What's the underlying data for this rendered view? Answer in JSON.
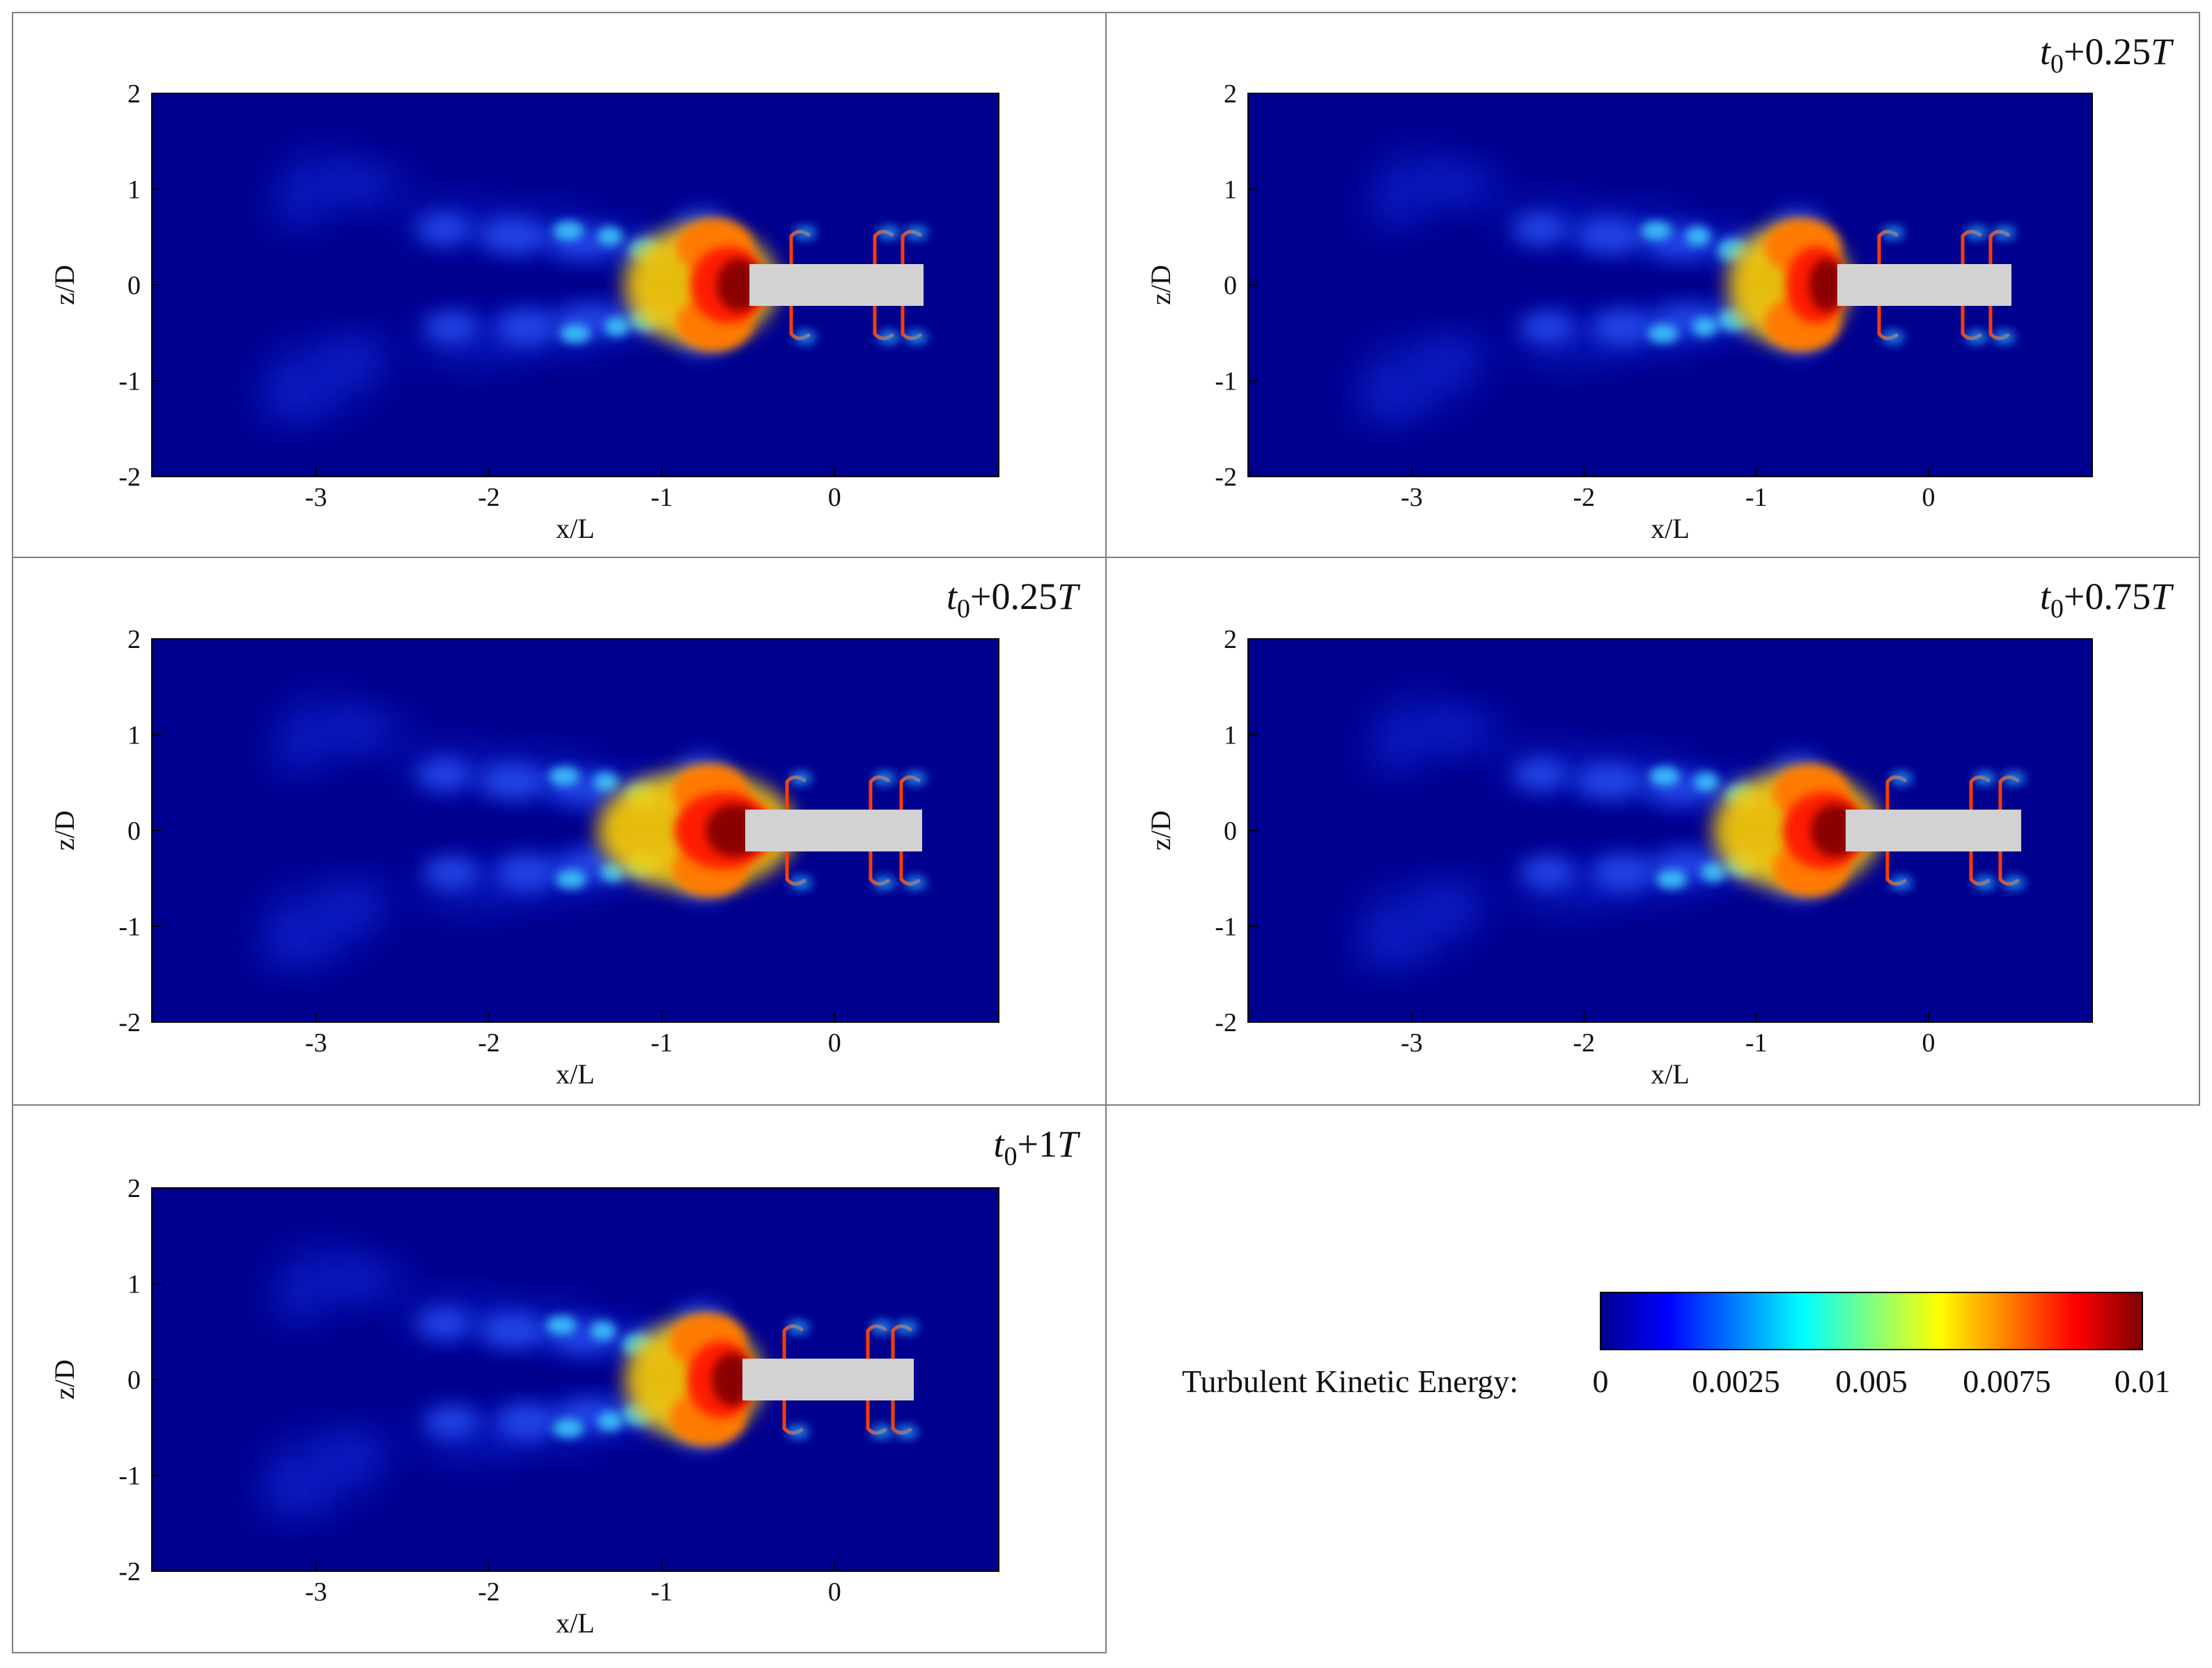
{
  "chart_data": [
    {
      "type": "heatmap",
      "title": "",
      "xlabel": "x/L",
      "ylabel": "z/D",
      "xlim": [
        -3.95,
        0.95
      ],
      "ylim": [
        -2,
        2
      ],
      "xticks": [
        "-3",
        "-2",
        "-1",
        "0"
      ],
      "yticks": [
        "2",
        "1",
        "0",
        "-1",
        "-2"
      ],
      "body_extent_x": [
        -0.5,
        0.5
      ]
    },
    {
      "type": "heatmap",
      "title": {
        "t": "t",
        "sub": "0",
        "plus": "+0.25",
        "T": "T"
      },
      "xlabel": "x/L",
      "ylabel": "z/D",
      "xlim": [
        -3.95,
        0.95
      ],
      "ylim": [
        -2,
        2
      ],
      "xticks": [
        "-3",
        "-2",
        "-1",
        "0"
      ],
      "yticks": [
        "2",
        "1",
        "0",
        "-1",
        "-2"
      ],
      "body_extent_x": [
        -0.5,
        0.5
      ]
    },
    {
      "type": "heatmap",
      "title": {
        "t": "t",
        "sub": "0",
        "plus": "+0.25",
        "T": "T"
      },
      "xlabel": "x/L",
      "ylabel": "z/D",
      "xlim": [
        -3.95,
        0.95
      ],
      "ylim": [
        -2,
        2
      ],
      "xticks": [
        "-3",
        "-2",
        "-1",
        "0"
      ],
      "yticks": [
        "2",
        "1",
        "0",
        "-1",
        "-2"
      ],
      "body_extent_x": [
        -0.5,
        0.5
      ]
    },
    {
      "type": "heatmap",
      "title": {
        "t": "t",
        "sub": "0",
        "plus": "+0.75",
        "T": "T"
      },
      "xlabel": "x/L",
      "ylabel": "z/D",
      "xlim": [
        -3.95,
        0.95
      ],
      "ylim": [
        -2,
        2
      ],
      "xticks": [
        "-3",
        "-2",
        "-1",
        "0"
      ],
      "yticks": [
        "2",
        "1",
        "0",
        "-1",
        "-2"
      ],
      "body_extent_x": [
        -0.5,
        0.5
      ]
    },
    {
      "type": "heatmap",
      "title": {
        "t": "t",
        "sub": "0",
        "plus": "+1",
        "T": "T"
      },
      "xlabel": "x/L",
      "ylabel": "z/D",
      "xlim": [
        -3.95,
        0.95
      ],
      "ylim": [
        -2,
        2
      ],
      "xticks": [
        "-3",
        "-2",
        "-1",
        "0"
      ],
      "yticks": [
        "2",
        "1",
        "0",
        "-1",
        "-2"
      ],
      "body_extent_x": [
        -0.5,
        0.5
      ]
    }
  ],
  "colorbar": {
    "label": "Turbulent Kinetic Energy:",
    "ticks": [
      "0",
      "0.0025",
      "0.005",
      "0.0075",
      "0.01"
    ],
    "range": [
      0,
      0.01
    ],
    "colors": [
      "#00008f",
      "#0000ff",
      "#00ffff",
      "#ffff00",
      "#ff0000",
      "#800000"
    ]
  },
  "colors": {
    "background": "#00008f",
    "body": "#d2d2d2",
    "frame": "#7f7f7f"
  }
}
